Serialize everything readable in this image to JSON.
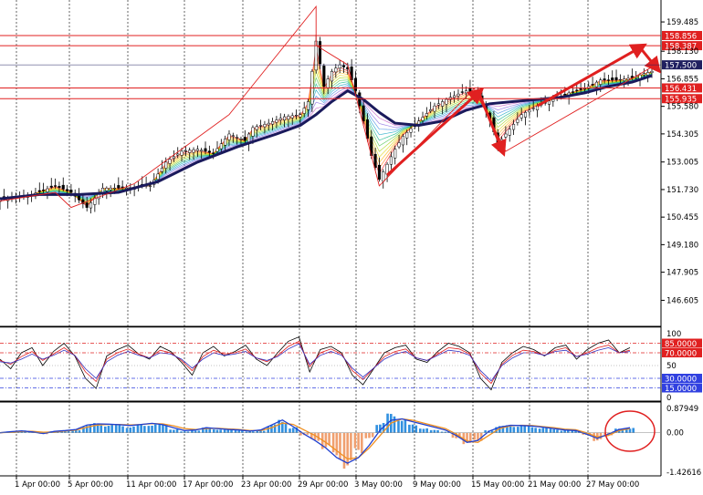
{
  "chart_data": [
    {
      "type": "candlestick",
      "title": "",
      "ylim": [
        145.4,
        160.5
      ],
      "y_ticks": [
        "159.485",
        "158.130",
        "156.855",
        "155.580",
        "154.305",
        "153.005",
        "151.730",
        "150.455",
        "149.180",
        "147.905",
        "146.605"
      ],
      "level_labels": [
        {
          "label": "158.856",
          "value": 158.856,
          "color": "#e02020"
        },
        {
          "label": "158.387",
          "value": 158.387,
          "color": "#e02020"
        },
        {
          "label": "157.500",
          "value": 157.5,
          "color": "#202060"
        },
        {
          "label": "156.431",
          "value": 156.431,
          "color": "#e02020"
        },
        {
          "label": "155.935",
          "value": 155.935,
          "color": "#e02020"
        }
      ],
      "close_path": [
        [
          0,
          151.3
        ],
        [
          8,
          151.5
        ],
        [
          14,
          151.9
        ],
        [
          18,
          151.6
        ],
        [
          22,
          150.9
        ],
        [
          26,
          151.8
        ],
        [
          32,
          151.8
        ],
        [
          38,
          151.9
        ],
        [
          42,
          153.0
        ],
        [
          46,
          153.5
        ],
        [
          50,
          153.6
        ],
        [
          54,
          153.4
        ],
        [
          58,
          154.3
        ],
        [
          62,
          154.0
        ],
        [
          64,
          154.6
        ],
        [
          68,
          154.8
        ],
        [
          72,
          155.1
        ],
        [
          76,
          155.2
        ],
        [
          78,
          155.8
        ],
        [
          80,
          158.6
        ],
        [
          82,
          156.5
        ],
        [
          84,
          157.2
        ],
        [
          86,
          157.5
        ],
        [
          88,
          157.3
        ],
        [
          90,
          156.3
        ],
        [
          92,
          154.9
        ],
        [
          94,
          153.3
        ],
        [
          96,
          152.2
        ],
        [
          98,
          152.9
        ],
        [
          100,
          153.6
        ],
        [
          102,
          154.2
        ],
        [
          106,
          154.9
        ],
        [
          110,
          155.6
        ],
        [
          114,
          156.0
        ],
        [
          118,
          156.3
        ],
        [
          120,
          156.1
        ],
        [
          122,
          155.8
        ],
        [
          124,
          155.0
        ],
        [
          126,
          153.8
        ],
        [
          128,
          154.3
        ],
        [
          132,
          155.2
        ],
        [
          136,
          155.6
        ],
        [
          140,
          155.9
        ],
        [
          144,
          156.2
        ],
        [
          148,
          156.4
        ],
        [
          152,
          156.8
        ],
        [
          156,
          156.8
        ],
        [
          160,
          156.9
        ],
        [
          163,
          157.1
        ],
        [
          165,
          157.2
        ]
      ],
      "ma_thick": [
        [
          0,
          151.3
        ],
        [
          10,
          151.5
        ],
        [
          20,
          151.5
        ],
        [
          30,
          151.6
        ],
        [
          40,
          152.1
        ],
        [
          50,
          153.0
        ],
        [
          60,
          153.7
        ],
        [
          70,
          154.3
        ],
        [
          76,
          154.7
        ],
        [
          80,
          155.2
        ],
        [
          84,
          155.8
        ],
        [
          88,
          156.3
        ],
        [
          92,
          155.9
        ],
        [
          96,
          155.3
        ],
        [
          100,
          154.8
        ],
        [
          106,
          154.7
        ],
        [
          112,
          154.9
        ],
        [
          118,
          155.4
        ],
        [
          124,
          155.7
        ],
        [
          130,
          155.8
        ],
        [
          136,
          155.9
        ],
        [
          142,
          156.0
        ],
        [
          148,
          156.2
        ],
        [
          154,
          156.5
        ],
        [
          160,
          156.7
        ],
        [
          165,
          157.0
        ]
      ],
      "trend_lines": [
        [
          [
            0,
            151.2
          ],
          [
            14,
            151.6
          ],
          [
            18,
            150.9
          ],
          [
            34,
            152.0
          ],
          [
            58,
            155.2
          ],
          [
            80,
            160.2
          ],
          [
            80,
            158.4
          ],
          [
            88,
            157.5
          ],
          [
            96,
            151.9
          ],
          [
            120,
            156.4
          ],
          [
            128,
            153.5
          ],
          [
            165,
            157.4
          ]
        ]
      ],
      "arrows": [
        [
          [
            98,
            152.4
          ],
          [
            121,
            156.2
          ]
        ],
        [
          [
            121,
            156.3
          ],
          [
            127,
            153.6
          ]
        ],
        [
          [
            136,
            155.6
          ],
          [
            162,
            158.3
          ]
        ],
        [
          [
            162,
            158.3
          ],
          [
            166,
            157.4
          ]
        ]
      ]
    },
    {
      "type": "line",
      "ylim": [
        0,
        100
      ],
      "y_ticks": [
        "100",
        "50",
        "0"
      ],
      "level_labels": [
        {
          "label": "85.0000",
          "value": 85,
          "color": "#e02020"
        },
        {
          "label": "70.0000",
          "value": 70,
          "color": "#e02020"
        },
        {
          "label": "30.0000",
          "value": 30,
          "color": "#3040e0"
        },
        {
          "label": "15.0000",
          "value": 15,
          "color": "#3040e0"
        }
      ],
      "series": [
        {
          "color": "#000000",
          "values": [
            60,
            45,
            70,
            78,
            50,
            72,
            85,
            65,
            30,
            14,
            65,
            75,
            82,
            68,
            60,
            80,
            72,
            55,
            35,
            70,
            80,
            65,
            72,
            82,
            60,
            50,
            70,
            88,
            95,
            40,
            75,
            80,
            70,
            35,
            20,
            45,
            70,
            78,
            82,
            60,
            55,
            72,
            85,
            80,
            70,
            30,
            12,
            55,
            70,
            80,
            75,
            65,
            78,
            82,
            60,
            75,
            85,
            90,
            70,
            78
          ]
        },
        {
          "color": "#e02020",
          "values": [
            58,
            52,
            64,
            72,
            58,
            68,
            78,
            66,
            40,
            25,
            60,
            70,
            76,
            68,
            62,
            74,
            70,
            58,
            42,
            64,
            74,
            68,
            70,
            76,
            62,
            56,
            66,
            80,
            88,
            48,
            70,
            76,
            68,
            42,
            28,
            46,
            64,
            72,
            76,
            62,
            58,
            68,
            78,
            76,
            68,
            38,
            22,
            52,
            66,
            74,
            72,
            66,
            74,
            78,
            64,
            70,
            78,
            82,
            70,
            74
          ]
        },
        {
          "color": "#3030c0",
          "values": [
            56,
            54,
            60,
            68,
            60,
            66,
            74,
            66,
            45,
            30,
            56,
            66,
            72,
            66,
            62,
            70,
            68,
            60,
            46,
            60,
            70,
            66,
            68,
            72,
            62,
            58,
            64,
            76,
            84,
            52,
            66,
            72,
            66,
            46,
            32,
            46,
            60,
            68,
            72,
            62,
            58,
            66,
            74,
            72,
            66,
            42,
            26,
            50,
            62,
            70,
            70,
            66,
            72,
            74,
            64,
            68,
            74,
            78,
            70,
            72
          ]
        }
      ]
    },
    {
      "type": "histogram",
      "ylim": [
        -1.42616,
        0.87949
      ],
      "y_ticks": [
        "0.87949",
        "0.00",
        "-1.42616"
      ],
      "values": [
        0.02,
        0.05,
        0.08,
        0.02,
        -0.05,
        0.05,
        0.08,
        0.12,
        0.3,
        0.35,
        0.32,
        0.3,
        0.25,
        0.3,
        0.35,
        0.3,
        0.15,
        0.05,
        0.1,
        0.2,
        0.15,
        0.12,
        0.1,
        0.05,
        0.1,
        0.3,
        0.5,
        0.2,
        -0.1,
        -0.3,
        -0.6,
        -1.0,
        -1.3,
        -0.8,
        -0.2,
        0.4,
        0.7,
        0.6,
        0.3,
        0.2,
        0.1,
        0.05,
        -0.2,
        -0.5,
        -0.3,
        0.1,
        0.25,
        0.3,
        0.28,
        0.25,
        0.2,
        0.15,
        0.1,
        0.1,
        -0.1,
        -0.3,
        -0.1,
        0.15,
        0.2
      ],
      "signal": [
        0.0,
        0.02,
        0.05,
        0.05,
        0.02,
        0.03,
        0.06,
        0.1,
        0.2,
        0.28,
        0.3,
        0.3,
        0.28,
        0.3,
        0.33,
        0.32,
        0.25,
        0.15,
        0.12,
        0.15,
        0.16,
        0.14,
        0.12,
        0.08,
        0.08,
        0.18,
        0.35,
        0.3,
        0.1,
        -0.1,
        -0.35,
        -0.65,
        -0.95,
        -0.9,
        -0.55,
        -0.1,
        0.35,
        0.5,
        0.45,
        0.35,
        0.25,
        0.15,
        -0.05,
        -0.3,
        -0.35,
        -0.1,
        0.15,
        0.25,
        0.27,
        0.26,
        0.22,
        0.18,
        0.13,
        0.11,
        0.0,
        -0.15,
        -0.1,
        0.08,
        0.15
      ],
      "main": [
        0.0,
        0.04,
        0.07,
        0.03,
        -0.03,
        0.05,
        0.08,
        0.12,
        0.28,
        0.32,
        0.31,
        0.29,
        0.26,
        0.3,
        0.34,
        0.29,
        0.18,
        0.08,
        0.1,
        0.18,
        0.15,
        0.12,
        0.1,
        0.06,
        0.1,
        0.28,
        0.46,
        0.22,
        -0.05,
        -0.28,
        -0.55,
        -0.9,
        -1.1,
        -0.9,
        -0.45,
        0.1,
        0.45,
        0.5,
        0.4,
        0.3,
        0.2,
        0.1,
        -0.1,
        -0.35,
        -0.28,
        0.05,
        0.2,
        0.27,
        0.26,
        0.24,
        0.2,
        0.15,
        0.1,
        0.08,
        -0.05,
        -0.2,
        -0.05,
        0.12,
        0.18
      ]
    }
  ],
  "time_axis": [
    "1 Apr 00:00",
    "5 Apr 00:00",
    "11 Apr 00:00",
    "17 Apr 00:00",
    "23 Apr 00:00",
    "29 Apr 00:00",
    "3 May 00:00",
    "9 May 00:00",
    "15 May 00:00",
    "21 May 00:00",
    "27 May 00:00"
  ],
  "colors": {
    "up": "#000000",
    "down": "#000000",
    "thick_ma": "#1a1a5c",
    "trend": "#e02020",
    "grid": "#000000"
  }
}
